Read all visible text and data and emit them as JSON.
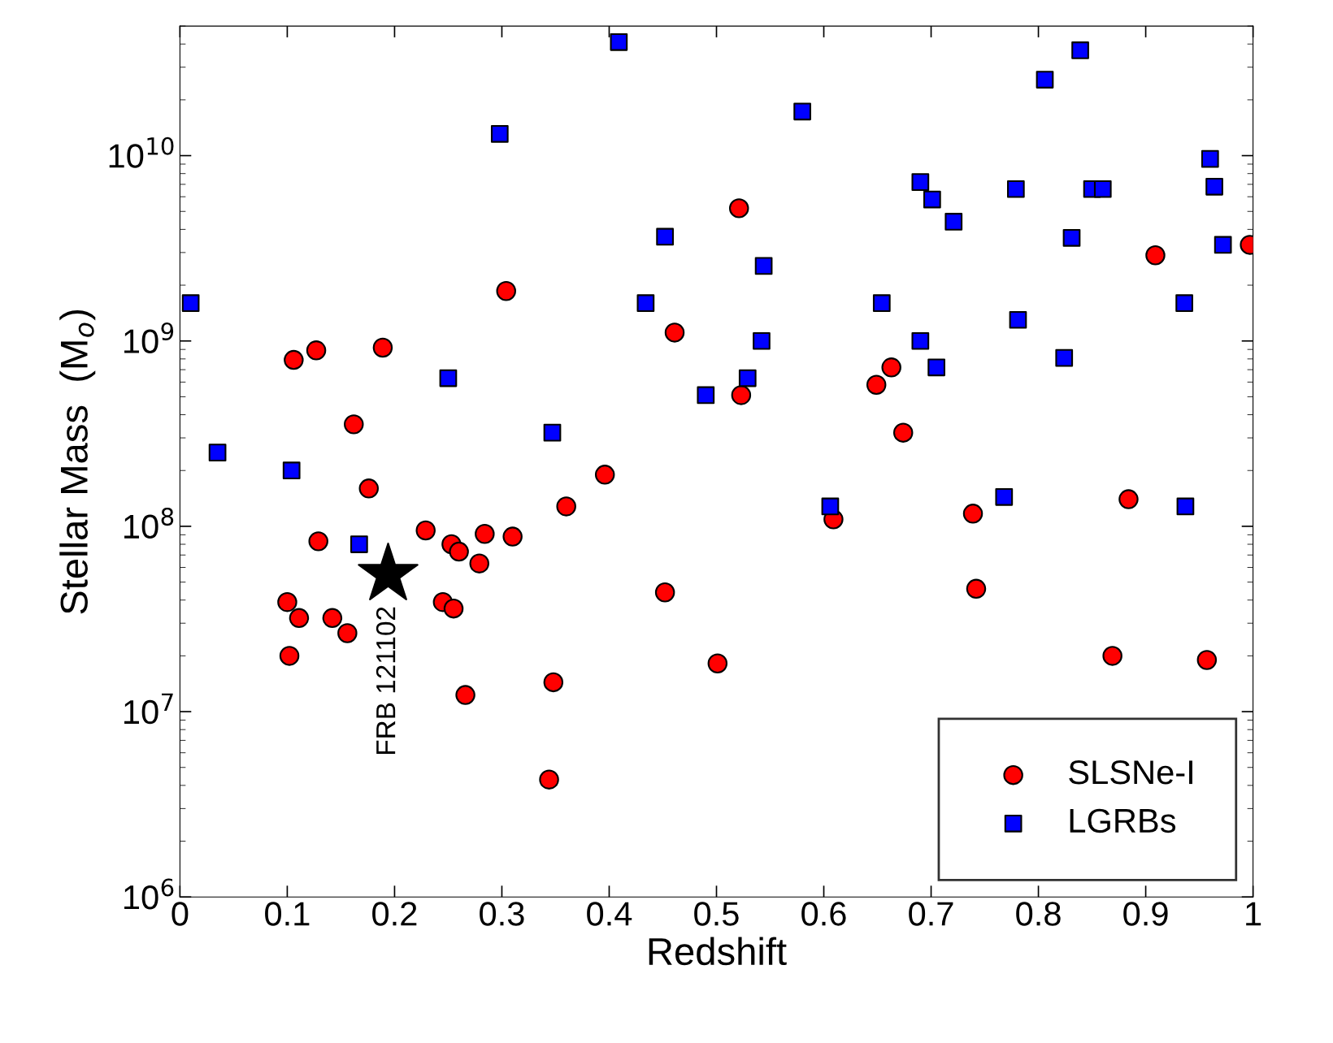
{
  "chart_data": {
    "type": "scatter",
    "xlabel": "Redshift",
    "ylabel": "Stellar Mass  (M$_{o}$)",
    "log": "y",
    "grid": false,
    "legend": "bottom right",
    "xlim": [
      0,
      1
    ],
    "xticks": [
      0,
      0.1,
      0.2,
      0.3,
      0.4,
      0.5,
      0.6,
      0.7,
      0.8,
      0.9,
      1
    ],
    "ylim": [
      1000000,
      50000000000
    ],
    "yticks": [
      {
        "value": 1000000,
        "label": "10$^{6}$"
      },
      {
        "value": 10000000,
        "label": "10$^{7}$"
      },
      {
        "value": 100000000,
        "label": "10$^{8}$"
      },
      {
        "value": 1000000000,
        "label": "10$^{9}$"
      },
      {
        "value": 10000000000,
        "label": "10$^{10}$"
      }
    ],
    "series": [
      {
        "name": "SLSNe-I",
        "color": "#ff0000",
        "marker": "circle",
        "x": [
          0.1,
          0.102,
          0.111,
          0.106,
          0.127,
          0.129,
          0.142,
          0.156,
          0.162,
          0.176,
          0.189,
          0.229,
          0.245,
          0.255,
          0.253,
          0.26,
          0.266,
          0.279,
          0.284,
          0.304,
          0.31,
          0.348,
          0.344,
          0.36,
          0.396,
          0.452,
          0.461,
          0.501,
          0.521,
          0.523,
          0.609,
          0.649,
          0.663,
          0.674,
          0.739,
          0.742,
          0.869,
          0.884,
          0.909,
          0.957,
          0.997
        ],
        "values": [
          39000000.0,
          20000000.0,
          32000000.0,
          790000000.0,
          890000000.0,
          83000000.0,
          32000000.0,
          26500000.0,
          355000000.0,
          160000000.0,
          920000000.0,
          95000000.0,
          39000000.0,
          36000000.0,
          80000000.0,
          73000000.0,
          12300000.0,
          63000000.0,
          91000000.0,
          1860000000.0,
          88000000.0,
          14400000.0,
          4300000.0,
          128000000.0,
          190000000.0,
          44000000.0,
          1110000000.0,
          18200000.0,
          5200000000.0,
          510000000.0,
          109000000.0,
          580000000.0,
          720000000.0,
          320000000.0,
          117000000.0,
          46000000.0,
          20000000.0,
          140000000.0,
          2900000000.0,
          19000000.0,
          3300000000.0
        ]
      },
      {
        "name": "LGRBs",
        "color": "#0000ff",
        "marker": "square",
        "x": [
          0.01,
          0.035,
          0.104,
          0.167,
          0.25,
          0.298,
          0.347,
          0.409,
          0.434,
          0.452,
          0.49,
          0.529,
          0.542,
          0.544,
          0.58,
          0.606,
          0.654,
          0.69,
          0.69,
          0.701,
          0.705,
          0.721,
          0.768,
          0.779,
          0.781,
          0.806,
          0.824,
          0.831,
          0.839,
          0.85,
          0.86,
          0.936,
          0.937,
          0.96,
          0.964,
          0.972
        ],
        "values": [
          1600000000.0,
          250000000.0,
          200000000.0,
          80000000.0,
          630000000.0,
          13100000000.0,
          320000000.0,
          41000000000.0,
          1600000000.0,
          3650000000.0,
          510000000.0,
          630000000.0,
          1000000000.0,
          2540000000.0,
          17300000000.0,
          128000000.0,
          1600000000.0,
          1000000000.0,
          7200000000.0,
          5800000000.0,
          720000000.0,
          4400000000.0,
          144000000.0,
          6600000000.0,
          1300000000.0,
          25700000000.0,
          810000000.0,
          3600000000.0,
          37000000000.0,
          6600000000.0,
          6600000000.0,
          1600000000.0,
          128000000.0,
          9600000000.0,
          6800000000.0,
          3300000000.0
        ]
      },
      {
        "color": "#000000",
        "marker": "star",
        "x": [
          0.194
        ],
        "values": [
          55000000.0
        ]
      }
    ],
    "annotations": [
      {
        "text": "FRB 121102",
        "x": 0.194,
        "y": 55000000.0
      }
    ]
  }
}
